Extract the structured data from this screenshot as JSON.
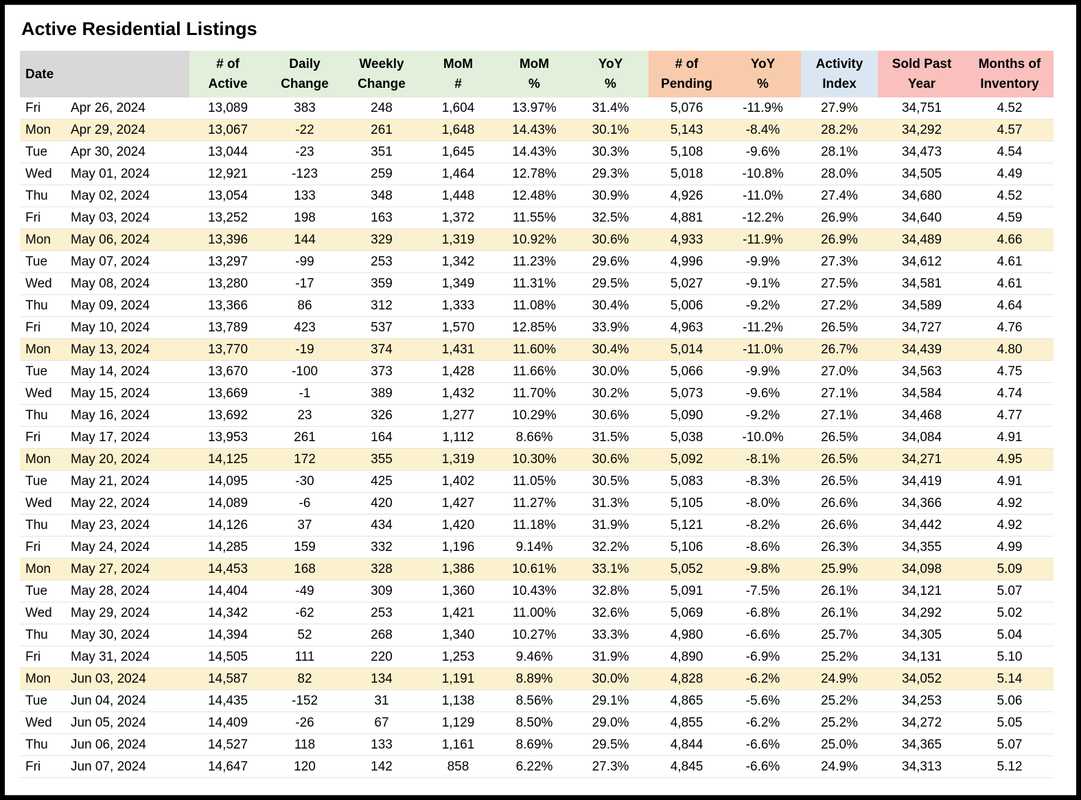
{
  "page_title": "Active Residential Listings",
  "colors": {
    "gray_header": "#D8D8D8",
    "green_header": "#E2EFDA",
    "orange_header": "#F8CBAD",
    "blue_header": "#DAE7F3",
    "pink_header": "#F9C0BE",
    "monday_highlight": "#FCF1CE",
    "row_border": "#E3E3E3"
  },
  "chart_data": {
    "type": "table",
    "title": "Active Residential Listings",
    "header": {
      "date": "Date",
      "columns": [
        {
          "id": "active",
          "line1": "# of",
          "line2": "Active",
          "group": "green"
        },
        {
          "id": "daily",
          "line1": "Daily",
          "line2": "Change",
          "group": "green"
        },
        {
          "id": "weekly",
          "line1": "Weekly",
          "line2": "Change",
          "group": "green"
        },
        {
          "id": "mom-num",
          "line1": "MoM",
          "line2": "#",
          "group": "green"
        },
        {
          "id": "mom-pct",
          "line1": "MoM",
          "line2": "%",
          "group": "green"
        },
        {
          "id": "yoy-pct",
          "line1": "YoY",
          "line2": "%",
          "group": "green"
        },
        {
          "id": "pending",
          "line1": "# of",
          "line2": "Pending",
          "group": "orange"
        },
        {
          "id": "pending-yoy",
          "line1": "YoY",
          "line2": "%",
          "group": "orange"
        },
        {
          "id": "activity",
          "line1": "Activity",
          "line2": "Index",
          "group": "blue"
        },
        {
          "id": "sold",
          "line1": "Sold Past",
          "line2": "Year",
          "group": "pink"
        },
        {
          "id": "months",
          "line1": "Months of",
          "line2": "Inventory",
          "group": "pink"
        }
      ]
    },
    "rows": [
      {
        "day": "Fri",
        "date": "Apr 26, 2024",
        "highlight": false,
        "values": [
          "13,089",
          "383",
          "248",
          "1,604",
          "13.97%",
          "31.4%",
          "5,076",
          "-11.9%",
          "27.9%",
          "34,751",
          "4.52"
        ]
      },
      {
        "day": "Mon",
        "date": "Apr 29, 2024",
        "highlight": true,
        "values": [
          "13,067",
          "-22",
          "261",
          "1,648",
          "14.43%",
          "30.1%",
          "5,143",
          "-8.4%",
          "28.2%",
          "34,292",
          "4.57"
        ]
      },
      {
        "day": "Tue",
        "date": "Apr 30, 2024",
        "highlight": false,
        "values": [
          "13,044",
          "-23",
          "351",
          "1,645",
          "14.43%",
          "30.3%",
          "5,108",
          "-9.6%",
          "28.1%",
          "34,473",
          "4.54"
        ]
      },
      {
        "day": "Wed",
        "date": "May 01, 2024",
        "highlight": false,
        "values": [
          "12,921",
          "-123",
          "259",
          "1,464",
          "12.78%",
          "29.3%",
          "5,018",
          "-10.8%",
          "28.0%",
          "34,505",
          "4.49"
        ]
      },
      {
        "day": "Thu",
        "date": "May 02, 2024",
        "highlight": false,
        "values": [
          "13,054",
          "133",
          "348",
          "1,448",
          "12.48%",
          "30.9%",
          "4,926",
          "-11.0%",
          "27.4%",
          "34,680",
          "4.52"
        ]
      },
      {
        "day": "Fri",
        "date": "May 03, 2024",
        "highlight": false,
        "values": [
          "13,252",
          "198",
          "163",
          "1,372",
          "11.55%",
          "32.5%",
          "4,881",
          "-12.2%",
          "26.9%",
          "34,640",
          "4.59"
        ]
      },
      {
        "day": "Mon",
        "date": "May 06, 2024",
        "highlight": true,
        "values": [
          "13,396",
          "144",
          "329",
          "1,319",
          "10.92%",
          "30.6%",
          "4,933",
          "-11.9%",
          "26.9%",
          "34,489",
          "4.66"
        ]
      },
      {
        "day": "Tue",
        "date": "May 07, 2024",
        "highlight": false,
        "values": [
          "13,297",
          "-99",
          "253",
          "1,342",
          "11.23%",
          "29.6%",
          "4,996",
          "-9.9%",
          "27.3%",
          "34,612",
          "4.61"
        ]
      },
      {
        "day": "Wed",
        "date": "May 08, 2024",
        "highlight": false,
        "values": [
          "13,280",
          "-17",
          "359",
          "1,349",
          "11.31%",
          "29.5%",
          "5,027",
          "-9.1%",
          "27.5%",
          "34,581",
          "4.61"
        ]
      },
      {
        "day": "Thu",
        "date": "May 09, 2024",
        "highlight": false,
        "values": [
          "13,366",
          "86",
          "312",
          "1,333",
          "11.08%",
          "30.4%",
          "5,006",
          "-9.2%",
          "27.2%",
          "34,589",
          "4.64"
        ]
      },
      {
        "day": "Fri",
        "date": "May 10, 2024",
        "highlight": false,
        "values": [
          "13,789",
          "423",
          "537",
          "1,570",
          "12.85%",
          "33.9%",
          "4,963",
          "-11.2%",
          "26.5%",
          "34,727",
          "4.76"
        ]
      },
      {
        "day": "Mon",
        "date": "May 13, 2024",
        "highlight": true,
        "values": [
          "13,770",
          "-19",
          "374",
          "1,431",
          "11.60%",
          "30.4%",
          "5,014",
          "-11.0%",
          "26.7%",
          "34,439",
          "4.80"
        ]
      },
      {
        "day": "Tue",
        "date": "May 14, 2024",
        "highlight": false,
        "values": [
          "13,670",
          "-100",
          "373",
          "1,428",
          "11.66%",
          "30.0%",
          "5,066",
          "-9.9%",
          "27.0%",
          "34,563",
          "4.75"
        ]
      },
      {
        "day": "Wed",
        "date": "May 15, 2024",
        "highlight": false,
        "values": [
          "13,669",
          "-1",
          "389",
          "1,432",
          "11.70%",
          "30.2%",
          "5,073",
          "-9.6%",
          "27.1%",
          "34,584",
          "4.74"
        ]
      },
      {
        "day": "Thu",
        "date": "May 16, 2024",
        "highlight": false,
        "values": [
          "13,692",
          "23",
          "326",
          "1,277",
          "10.29%",
          "30.6%",
          "5,090",
          "-9.2%",
          "27.1%",
          "34,468",
          "4.77"
        ]
      },
      {
        "day": "Fri",
        "date": "May 17, 2024",
        "highlight": false,
        "values": [
          "13,953",
          "261",
          "164",
          "1,112",
          "8.66%",
          "31.5%",
          "5,038",
          "-10.0%",
          "26.5%",
          "34,084",
          "4.91"
        ]
      },
      {
        "day": "Mon",
        "date": "May 20, 2024",
        "highlight": true,
        "values": [
          "14,125",
          "172",
          "355",
          "1,319",
          "10.30%",
          "30.6%",
          "5,092",
          "-8.1%",
          "26.5%",
          "34,271",
          "4.95"
        ]
      },
      {
        "day": "Tue",
        "date": "May 21, 2024",
        "highlight": false,
        "values": [
          "14,095",
          "-30",
          "425",
          "1,402",
          "11.05%",
          "30.5%",
          "5,083",
          "-8.3%",
          "26.5%",
          "34,419",
          "4.91"
        ]
      },
      {
        "day": "Wed",
        "date": "May 22, 2024",
        "highlight": false,
        "values": [
          "14,089",
          "-6",
          "420",
          "1,427",
          "11.27%",
          "31.3%",
          "5,105",
          "-8.0%",
          "26.6%",
          "34,366",
          "4.92"
        ]
      },
      {
        "day": "Thu",
        "date": "May 23, 2024",
        "highlight": false,
        "values": [
          "14,126",
          "37",
          "434",
          "1,420",
          "11.18%",
          "31.9%",
          "5,121",
          "-8.2%",
          "26.6%",
          "34,442",
          "4.92"
        ]
      },
      {
        "day": "Fri",
        "date": "May 24, 2024",
        "highlight": false,
        "values": [
          "14,285",
          "159",
          "332",
          "1,196",
          "9.14%",
          "32.2%",
          "5,106",
          "-8.6%",
          "26.3%",
          "34,355",
          "4.99"
        ]
      },
      {
        "day": "Mon",
        "date": "May 27, 2024",
        "highlight": true,
        "values": [
          "14,453",
          "168",
          "328",
          "1,386",
          "10.61%",
          "33.1%",
          "5,052",
          "-9.8%",
          "25.9%",
          "34,098",
          "5.09"
        ]
      },
      {
        "day": "Tue",
        "date": "May 28, 2024",
        "highlight": false,
        "values": [
          "14,404",
          "-49",
          "309",
          "1,360",
          "10.43%",
          "32.8%",
          "5,091",
          "-7.5%",
          "26.1%",
          "34,121",
          "5.07"
        ]
      },
      {
        "day": "Wed",
        "date": "May 29, 2024",
        "highlight": false,
        "values": [
          "14,342",
          "-62",
          "253",
          "1,421",
          "11.00%",
          "32.6%",
          "5,069",
          "-6.8%",
          "26.1%",
          "34,292",
          "5.02"
        ]
      },
      {
        "day": "Thu",
        "date": "May 30, 2024",
        "highlight": false,
        "values": [
          "14,394",
          "52",
          "268",
          "1,340",
          "10.27%",
          "33.3%",
          "4,980",
          "-6.6%",
          "25.7%",
          "34,305",
          "5.04"
        ]
      },
      {
        "day": "Fri",
        "date": "May 31, 2024",
        "highlight": false,
        "values": [
          "14,505",
          "111",
          "220",
          "1,253",
          "9.46%",
          "31.9%",
          "4,890",
          "-6.9%",
          "25.2%",
          "34,131",
          "5.10"
        ]
      },
      {
        "day": "Mon",
        "date": "Jun 03, 2024",
        "highlight": true,
        "values": [
          "14,587",
          "82",
          "134",
          "1,191",
          "8.89%",
          "30.0%",
          "4,828",
          "-6.2%",
          "24.9%",
          "34,052",
          "5.14"
        ]
      },
      {
        "day": "Tue",
        "date": "Jun 04, 2024",
        "highlight": false,
        "values": [
          "14,435",
          "-152",
          "31",
          "1,138",
          "8.56%",
          "29.1%",
          "4,865",
          "-5.6%",
          "25.2%",
          "34,253",
          "5.06"
        ]
      },
      {
        "day": "Wed",
        "date": "Jun 05, 2024",
        "highlight": false,
        "values": [
          "14,409",
          "-26",
          "67",
          "1,129",
          "8.50%",
          "29.0%",
          "4,855",
          "-6.2%",
          "25.2%",
          "34,272",
          "5.05"
        ]
      },
      {
        "day": "Thu",
        "date": "Jun 06, 2024",
        "highlight": false,
        "values": [
          "14,527",
          "118",
          "133",
          "1,161",
          "8.69%",
          "29.5%",
          "4,844",
          "-6.6%",
          "25.0%",
          "34,365",
          "5.07"
        ]
      },
      {
        "day": "Fri",
        "date": "Jun 07, 2024",
        "highlight": false,
        "values": [
          "14,647",
          "120",
          "142",
          "858",
          "6.22%",
          "27.3%",
          "4,845",
          "-6.6%",
          "24.9%",
          "34,313",
          "5.12"
        ]
      }
    ]
  }
}
